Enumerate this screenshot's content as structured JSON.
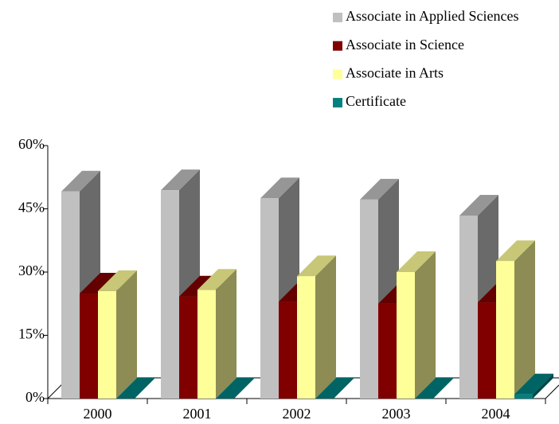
{
  "chart_data": {
    "type": "bar3d",
    "categories": [
      "2000",
      "2001",
      "2002",
      "2003",
      "2004"
    ],
    "series": [
      {
        "name": "Associate in Applied Sciences",
        "color": "#c0c0c0",
        "values": [
          49.1,
          49.4,
          47.5,
          47.2,
          43.4
        ]
      },
      {
        "name": "Associate in Science",
        "color": "#800000",
        "values": [
          24.9,
          24.2,
          23,
          22.5,
          22.8
        ]
      },
      {
        "name": "Associate in Arts",
        "color": "#ffff99",
        "values": [
          25.5,
          25.8,
          29,
          30,
          32.6
        ]
      },
      {
        "name": "Certificate",
        "color": "#008080",
        "values": [
          0,
          0,
          0,
          0,
          1
        ]
      }
    ],
    "ylim": [
      0,
      60
    ],
    "yticks": [
      {
        "value": 0,
        "label": "0%"
      },
      {
        "value": 15,
        "label": "15%"
      },
      {
        "value": 30,
        "label": "30%"
      },
      {
        "value": 45,
        "label": "45%"
      },
      {
        "value": 60,
        "label": "60%"
      }
    ],
    "legend": "top-right"
  }
}
